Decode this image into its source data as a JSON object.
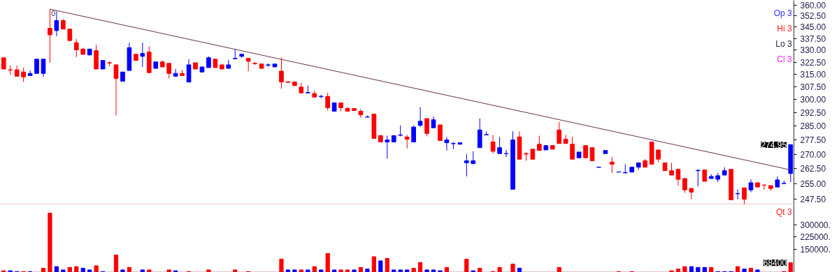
{
  "chart_data": [
    {
      "type": "candlestick",
      "log": "y",
      "ylim": [
        244.9,
        363.3
      ],
      "tick_labels": "y",
      "yticks": [
        {
          "value": 247.5,
          "label": "247.50"
        },
        {
          "value": 255,
          "label": "255.00"
        },
        {
          "value": 262.5,
          "label": "262.50"
        },
        {
          "value": 270,
          "label": "270.00"
        },
        {
          "value": 277.5,
          "label": "277.50"
        },
        {
          "value": 285,
          "label": "285.00"
        },
        {
          "value": 292.5,
          "label": "292.50"
        },
        {
          "value": 300,
          "label": "300.00"
        },
        {
          "value": 307.5,
          "label": "307.50"
        },
        {
          "value": 315,
          "label": "315.00"
        },
        {
          "value": 322.5,
          "label": "322.50"
        },
        {
          "value": 330,
          "label": "330.00"
        },
        {
          "value": 337.5,
          "label": "337.50"
        },
        {
          "value": 345,
          "label": "345.00"
        },
        {
          "value": 352.5,
          "label": "352.50"
        },
        {
          "value": 360,
          "label": "360.00"
        }
      ],
      "categories": [
        null,
        null,
        null,
        null,
        null,
        null,
        null,
        null,
        null,
        null,
        null,
        null,
        null,
        null,
        null,
        null,
        null,
        null,
        null,
        null,
        null,
        null,
        null,
        null,
        null,
        null,
        null,
        null,
        null,
        null,
        null,
        null,
        null,
        null,
        null,
        null,
        null,
        null,
        null,
        null,
        null,
        null,
        null,
        null,
        null,
        null,
        null,
        null,
        null,
        null,
        null,
        null,
        null,
        null,
        null,
        null,
        null,
        null,
        null,
        null,
        null,
        null,
        null,
        null,
        null,
        null,
        null,
        null,
        null,
        null,
        null,
        null,
        null,
        null,
        null,
        null,
        null,
        null,
        null,
        null,
        null,
        null,
        null,
        null,
        null,
        null,
        null,
        null,
        null,
        null,
        null,
        null,
        null,
        null,
        null,
        null,
        null,
        null,
        null,
        null,
        null,
        null,
        null,
        null,
        null,
        null,
        null,
        null,
        null,
        null,
        null,
        null,
        null,
        null,
        null,
        null,
        null,
        null,
        null,
        null
      ],
      "ohlc": [
        [
          325.2,
          325.2,
          318.2,
          318.2
        ],
        [
          317.7,
          320.4,
          314.7,
          317.5
        ],
        [
          317.7,
          320.4,
          313.4,
          313.8
        ],
        [
          316.4,
          319.1,
          310.3,
          313.4
        ],
        [
          314.2,
          317.3,
          314.2,
          315.5
        ],
        [
          315.5,
          324.3,
          315.5,
          324.3
        ],
        [
          315.5,
          324.3,
          313.4,
          324.3
        ],
        [
          344.2,
          357.2,
          322.1,
          339.9
        ],
        [
          342.7,
          355.7,
          339.0,
          349.4
        ],
        [
          349.4,
          350.4,
          343.7,
          343.7
        ],
        [
          343.7,
          343.7,
          335.7,
          336.2
        ],
        [
          334.8,
          337.1,
          325.7,
          330.2
        ],
        [
          330.7,
          331.6,
          327.0,
          327.4
        ],
        [
          327.0,
          330.7,
          326.6,
          330.7
        ],
        [
          329.7,
          333.4,
          318.2,
          318.2
        ],
        [
          318.2,
          323.5,
          318.2,
          323.5
        ],
        [
          322.1,
          323.0,
          319.9,
          321.9
        ],
        [
          320.8,
          320.8,
          290.9,
          312.5
        ],
        [
          310.8,
          316.4,
          310.8,
          316.4
        ],
        [
          317.3,
          334.8,
          317.3,
          331.6
        ],
        [
          327.4,
          327.4,
          323.5,
          323.5
        ],
        [
          326.1,
          334.8,
          319.5,
          327.9
        ],
        [
          328.8,
          332.5,
          316.0,
          316.0
        ],
        [
          318.6,
          322.6,
          318.6,
          322.6
        ],
        [
          322.6,
          323.5,
          319.5,
          319.5
        ],
        [
          321.7,
          321.7,
          312.5,
          315.5
        ],
        [
          313.8,
          318.2,
          313.4,
          315.5
        ],
        [
          315.5,
          317.7,
          314.2,
          314.2
        ],
        [
          310.3,
          324.3,
          310.3,
          320.8
        ],
        [
          322.1,
          322.1,
          318.2,
          318.2
        ],
        [
          316.4,
          319.5,
          316.4,
          319.5
        ],
        [
          319.1,
          326.1,
          319.1,
          325.2
        ],
        [
          324.3,
          324.3,
          319.1,
          319.1
        ],
        [
          320.8,
          320.8,
          318.2,
          318.2
        ],
        [
          318.6,
          323.9,
          318.6,
          320.8
        ],
        [
          324.6,
          330.7,
          324.6,
          324.8
        ],
        [
          326.1,
          327.4,
          325.2,
          327.4
        ],
        [
          324.8,
          324.8,
          316.9,
          323.0
        ],
        [
          321.7,
          322.6,
          320.8,
          321.5
        ],
        [
          321.3,
          321.3,
          318.6,
          318.6
        ],
        [
          320.6,
          321.7,
          319.5,
          320.8
        ],
        [
          319.5,
          321.3,
          319.5,
          321.3
        ],
        [
          316.9,
          325.2,
          306.4,
          310.3
        ],
        [
          310.5,
          310.5,
          310.1,
          310.1
        ],
        [
          310.3,
          310.8,
          308.2,
          308.2
        ],
        [
          307.3,
          309.9,
          303.5,
          303.9
        ],
        [
          303.9,
          308.2,
          303.5,
          304.1
        ],
        [
          303.5,
          305.2,
          301.4,
          301.4
        ],
        [
          301.7,
          302.7,
          300.6,
          301.9
        ],
        [
          301.8,
          303.9,
          293.7,
          295.3
        ],
        [
          293.3,
          298.1,
          293.3,
          298.1
        ],
        [
          298.1,
          298.1,
          293.3,
          295.3
        ],
        [
          294.9,
          295.7,
          293.3,
          293.3
        ],
        [
          294.9,
          294.9,
          293.7,
          293.7
        ],
        [
          293.3,
          294.5,
          289.6,
          291.3
        ],
        [
          290.0,
          290.9,
          290.0,
          290.1
        ],
        [
          291.7,
          291.7,
          278.3,
          278.3
        ],
        [
          279.8,
          280.2,
          276.4,
          276.4
        ],
        [
          276.4,
          279.8,
          267.7,
          277.5
        ],
        [
          276.4,
          279.8,
          276.4,
          279.8
        ],
        [
          280.0,
          285.4,
          279.4,
          280.2
        ],
        [
          279.1,
          280.2,
          273.0,
          277.9
        ],
        [
          276.4,
          285.4,
          276.4,
          284.5
        ],
        [
          285.4,
          295.7,
          284.5,
          287.7
        ],
        [
          289.2,
          289.2,
          279.4,
          281.0
        ],
        [
          284.1,
          290.4,
          284.1,
          288.5
        ],
        [
          285.7,
          285.7,
          277.2,
          277.2
        ],
        [
          276.0,
          279.1,
          271.9,
          277.5
        ],
        [
          275.5,
          276.4,
          272.6,
          275.6
        ],
        [
          275.2,
          276.0,
          275.2,
          276.0
        ],
        [
          265.5,
          270.0,
          258.6,
          266.6
        ],
        [
          265.1,
          271.5,
          264.8,
          266.6
        ],
        [
          273.4,
          289.2,
          273.4,
          282.9
        ],
        [
          280.2,
          282.1,
          280.2,
          280.4
        ],
        [
          276.4,
          280.2,
          270.3,
          271.5
        ],
        [
          270.3,
          279.1,
          270.3,
          273.4
        ],
        [
          270.2,
          272.2,
          268.5,
          270.3
        ],
        [
          252.3,
          282.1,
          252.3,
          277.5
        ],
        [
          279.1,
          282.1,
          267.4,
          267.4
        ],
        [
          270.3,
          271.1,
          266.6,
          270.0
        ],
        [
          272.6,
          272.6,
          267.4,
          267.4
        ],
        [
          275.2,
          279.8,
          271.9,
          271.9
        ],
        [
          272.2,
          274.5,
          272.2,
          274.5
        ],
        [
          274.5,
          274.5,
          272.6,
          272.6
        ],
        [
          282.9,
          287.3,
          275.6,
          275.6
        ],
        [
          277.9,
          280.2,
          275.6,
          275.6
        ],
        [
          275.2,
          279.1,
          267.4,
          267.4
        ],
        [
          268.1,
          271.1,
          268.1,
          271.1
        ],
        [
          274.5,
          274.5,
          268.1,
          268.1
        ],
        [
          273.4,
          273.4,
          266.6,
          266.6
        ],
        [
          263.2,
          263.3,
          263.2,
          263.3
        ],
        [
          270.3,
          271.9,
          270.0,
          271.9
        ],
        [
          265.9,
          268.5,
          260.4,
          264.8
        ],
        [
          260.8,
          260.9,
          260.8,
          260.9
        ],
        [
          260.4,
          264.8,
          260.4,
          260.6
        ],
        [
          260.8,
          263.3,
          260.8,
          263.3
        ],
        [
          263.3,
          265.5,
          261.9,
          265.5
        ],
        [
          266.6,
          267.4,
          263.3,
          263.3
        ],
        [
          276.4,
          276.4,
          264.8,
          264.8
        ],
        [
          272.2,
          272.2,
          265.9,
          267.4
        ],
        [
          265.5,
          265.5,
          261.5,
          261.5
        ],
        [
          261.5,
          265.5,
          259.3,
          259.3
        ],
        [
          262.2,
          262.2,
          254.1,
          257.2
        ],
        [
          257.6,
          257.6,
          250.6,
          252.0
        ],
        [
          252.7,
          253.0,
          247.5,
          250.9
        ],
        [
          261.5,
          262.2,
          253.7,
          261.7
        ],
        [
          261.9,
          261.9,
          256.2,
          256.2
        ],
        [
          257.6,
          259.7,
          257.6,
          258.6
        ],
        [
          257.2,
          260.4,
          255.8,
          259.0
        ],
        [
          259.3,
          263.3,
          259.3,
          261.5
        ],
        [
          262.2,
          262.2,
          247.2,
          247.2
        ],
        [
          250.1,
          252.3,
          247.5,
          250.2
        ],
        [
          253.0,
          253.0,
          245.2,
          247.5
        ],
        [
          252.0,
          257.2,
          250.9,
          255.5
        ],
        [
          255.5,
          255.5,
          253.4,
          253.4
        ],
        [
          254.4,
          254.4,
          252.0,
          254.3
        ],
        [
          254.1,
          254.1,
          251.6,
          252.7
        ],
        [
          253.4,
          258.6,
          253.4,
          256.9
        ],
        [
          255.1,
          256.5,
          255.1,
          255.2
        ],
        [
          260.1,
          275.2,
          255.8,
          274.95
        ]
      ],
      "colors": [
        "#ff0000",
        "#ff0000",
        "#ff0000",
        "#ff0000",
        "#0000ff",
        "#0000ff",
        "#0000ff",
        "#ff0000",
        "#0000ff",
        "#ff0000",
        "#ff0000",
        "#ff0000",
        "#ff0000",
        "#0000ff",
        "#ff0000",
        "#0000ff",
        "#ff0000",
        "#ff0000",
        "#0000ff",
        "#0000ff",
        "#ff0000",
        "#0000ff",
        "#ff0000",
        "#0000ff",
        "#ff0000",
        "#ff0000",
        "#0000ff",
        "#ff0000",
        "#0000ff",
        "#ff0000",
        "#0000ff",
        "#0000ff",
        "#ff0000",
        "#ff0000",
        "#0000ff",
        "#0000ff",
        "#0000ff",
        "#ff0000",
        "#ff0000",
        "#ff0000",
        "#0000ff",
        "#0000ff",
        "#ff0000",
        "#ff0000",
        "#ff0000",
        "#ff0000",
        "#0000ff",
        "#ff0000",
        "#0000ff",
        "#ff0000",
        "#0000ff",
        "#ff0000",
        "#ff0000",
        "#ff0000",
        "#ff0000",
        "#0000ff",
        "#ff0000",
        "#ff0000",
        "#0000ff",
        "#0000ff",
        "#0000ff",
        "#ff0000",
        "#0000ff",
        "#0000ff",
        "#ff0000",
        "#0000ff",
        "#ff0000",
        "#0000ff",
        "#0000ff",
        "#0000ff",
        "#0000ff",
        "#0000ff",
        "#0000ff",
        "#0000ff",
        "#ff0000",
        "#0000ff",
        "#0000ff",
        "#0000ff",
        "#ff0000",
        "#ff0000",
        "#ff0000",
        "#ff0000",
        "#0000ff",
        "#ff0000",
        "#ff0000",
        "#ff0000",
        "#ff0000",
        "#0000ff",
        "#ff0000",
        "#ff0000",
        "#0000ff",
        "#0000ff",
        "#ff0000",
        "#0000ff",
        "#0000ff",
        "#0000ff",
        "#0000ff",
        "#ff0000",
        "#ff0000",
        "#ff0000",
        "#ff0000",
        "#ff0000",
        "#ff0000",
        "#ff0000",
        "#ff0000",
        "#0000ff",
        "#ff0000",
        "#0000ff",
        "#0000ff",
        "#0000ff",
        "#ff0000",
        "#0000ff",
        "#ff0000",
        "#0000ff",
        "#ff0000",
        "#ff0000",
        "#ff0000",
        "#0000ff",
        "#0000ff",
        "#0000ff"
      ],
      "series": [
        {
          "type": "line",
          "color": "#6b3050",
          "values": [
            null,
            null,
            null,
            null,
            null,
            null,
            null,
            357.2,
            null,
            null,
            null,
            null,
            null,
            null,
            null,
            null,
            null,
            null,
            null,
            null,
            null,
            null,
            null,
            null,
            null,
            null,
            null,
            null,
            null,
            null,
            null,
            null,
            null,
            null,
            null,
            null,
            null,
            null,
            null,
            null,
            null,
            null,
            null,
            null,
            null,
            null,
            null,
            null,
            null,
            null,
            null,
            null,
            null,
            null,
            null,
            null,
            null,
            null,
            null,
            null,
            null,
            null,
            null,
            null,
            null,
            null,
            null,
            null,
            null,
            null,
            null,
            null,
            null,
            null,
            null,
            null,
            null,
            null,
            null,
            null,
            null,
            null,
            null,
            null,
            null,
            null,
            null,
            null,
            null,
            null,
            null,
            null,
            null,
            null,
            null,
            null,
            null,
            null,
            null,
            null,
            null,
            null,
            null,
            null,
            null,
            null,
            null,
            null,
            null,
            null,
            null,
            null,
            null,
            null,
            null,
            null,
            null,
            null,
            null,
            261.9
          ]
        }
      ],
      "annotations": [
        "0",
        "274.95",
        "Op 3",
        "Hi 3",
        "Lo 3",
        "Cl 3"
      ]
    },
    {
      "type": "bar",
      "ylim": [
        10000,
        421000
      ],
      "tick_labels": "y",
      "yticks": [
        {
          "value": 150000,
          "label": "150000."
        },
        {
          "value": 225000,
          "label": "225000."
        },
        {
          "value": 300000,
          "label": "300000."
        }
      ],
      "categories": [
        null,
        null,
        null,
        null,
        null,
        null,
        null,
        null,
        null,
        null,
        null,
        null,
        null,
        null,
        null,
        null,
        null,
        null,
        null,
        null,
        null,
        null,
        null,
        null,
        null,
        null,
        null,
        null,
        null,
        null,
        null,
        null,
        null,
        null,
        null,
        null,
        null,
        null,
        null,
        null,
        null,
        null,
        null,
        null,
        null,
        null,
        null,
        null,
        null,
        null,
        null,
        null,
        null,
        null,
        null,
        null,
        null,
        null,
        null,
        null,
        null,
        null,
        null,
        null,
        null,
        null,
        null,
        null,
        null,
        null,
        null,
        null,
        null,
        null,
        null,
        null,
        null,
        null,
        null,
        null,
        null,
        null,
        null,
        null,
        null,
        null,
        null,
        null,
        null,
        null,
        null,
        null,
        null,
        null,
        null,
        null,
        null,
        null,
        null,
        null,
        null,
        null,
        null,
        null,
        null,
        null,
        null,
        null,
        null,
        null,
        null,
        null,
        null,
        null,
        null,
        null,
        null,
        null,
        null,
        null
      ],
      "values": [
        20000,
        20000,
        15000,
        15000,
        15000,
        null,
        35000,
        370000,
        45000,
        25000,
        40000,
        45000,
        35000,
        25000,
        50000,
        15000,
        null,
        115000,
        25000,
        40000,
        null,
        25000,
        25000,
        null,
        null,
        25000,
        20000,
        null,
        15000,
        null,
        null,
        25000,
        null,
        null,
        null,
        25000,
        null,
        15000,
        null,
        null,
        null,
        null,
        90000,
        25000,
        25000,
        25000,
        25000,
        45000,
        25000,
        125000,
        25000,
        25000,
        25000,
        25000,
        40000,
        30000,
        105000,
        80000,
        95000,
        25000,
        25000,
        25000,
        35000,
        70000,
        25000,
        25000,
        20000,
        40000,
        null,
        null,
        90000,
        20000,
        35000,
        null,
        15000,
        40000,
        null,
        60000,
        35000,
        null,
        null,
        null,
        null,
        null,
        40000,
        null,
        null,
        null,
        null,
        null,
        null,
        null,
        null,
        15000,
        null,
        15000,
        null,
        null,
        null,
        null,
        null,
        20000,
        30000,
        45000,
        45000,
        40000,
        40000,
        40000,
        15000,
        15000,
        15000,
        45000,
        30000,
        35000,
        25000,
        null,
        null,
        null,
        15000,
        68400
      ],
      "colors": [
        "#ff0000",
        "#0000ff",
        "#0000ff",
        "#ff0000",
        "#0000ff",
        "#ff0000",
        "#ff0000",
        "#ff0000",
        "#0000ff",
        "#0000ff",
        "#ff0000",
        "#ff0000",
        "#0000ff",
        "#0000ff",
        "#ff0000",
        "#0000ff",
        "#ff0000",
        "#ff0000",
        "#0000ff",
        "#ff0000",
        "#ff0000",
        "#0000ff",
        "#ff0000",
        "#ff0000",
        "#ff0000",
        "#ff0000",
        "#0000ff",
        "#ff0000",
        "#ff0000",
        "#ff0000",
        "#ff0000",
        "#ff0000",
        "#ff0000",
        "#ff0000",
        "#ff0000",
        "#ff0000",
        "#ff0000",
        "#ff0000",
        "#ff0000",
        "#ff0000",
        "#ff0000",
        "#ff0000",
        "#ff0000",
        "#0000ff",
        "#0000ff",
        "#ff0000",
        "#0000ff",
        "#ff0000",
        "#0000ff",
        "#ff0000",
        "#0000ff",
        "#ff0000",
        "#ff0000",
        "#0000ff",
        "#ff0000",
        "#0000ff",
        "#ff0000",
        "#0000ff",
        "#ff0000",
        "#0000ff",
        "#0000ff",
        "#0000ff",
        "#ff0000",
        "#ff0000",
        "#0000ff",
        "#0000ff",
        "#0000ff",
        "#ff0000",
        "#ff0000",
        "#ff0000",
        "#ff0000",
        "#0000ff",
        "#ff0000",
        "#ff0000",
        "#ff0000",
        "#ff0000",
        "#ff0000",
        "#ff0000",
        "#0000ff",
        "#ff0000",
        "#ff0000",
        "#ff0000",
        "#ff0000",
        "#ff0000",
        "#ff0000",
        "#ff0000",
        "#ff0000",
        "#ff0000",
        "#ff0000",
        "#ff0000",
        "#ff0000",
        "#ff0000",
        "#ff0000",
        "#ff0000",
        "#ff0000",
        "#ff0000",
        "#ff0000",
        "#ff0000",
        "#ff0000",
        "#ff0000",
        "#ff0000",
        "#ff0000",
        "#ff0000",
        "#ff0000",
        "#0000ff",
        "#0000ff",
        "#0000ff",
        "#ff0000",
        "#0000ff",
        "#0000ff",
        "#0000ff",
        "#ff0000",
        "#0000ff",
        "#ff0000",
        "#0000ff",
        "#ff0000",
        "#ff0000",
        "#ff0000",
        "#ff0000",
        "#ff0000"
      ],
      "annotations": [
        "Qt 3",
        "68400"
      ]
    }
  ]
}
